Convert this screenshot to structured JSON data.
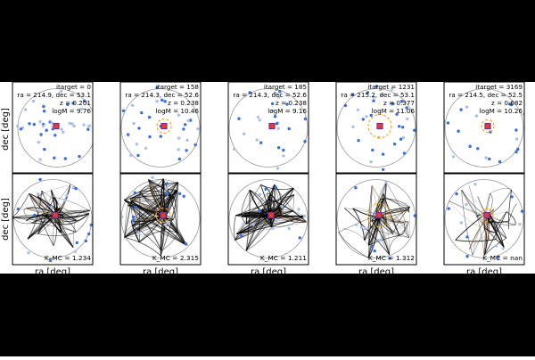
{
  "figure": {
    "top_ylabel": "dec [deg]",
    "bottom_ylabel": "dec [deg]",
    "xlabel": "ra [deg]"
  },
  "chart_data": [
    {
      "type": "scatter",
      "row": "top",
      "info": [
        "itarget = 0",
        "ra = 214.9, dec = 53.1",
        "z = 0.201",
        "logM = 9.76"
      ],
      "has_aperture": false
    },
    {
      "type": "scatter",
      "row": "top",
      "info": [
        "itarget = 158",
        "ra = 214.3, dec = 52.6",
        "z = 0.238",
        "logM = 10.46"
      ],
      "has_aperture": true
    },
    {
      "type": "scatter",
      "row": "top",
      "info": [
        "itarget = 185",
        "ra = 214.3, dec = 52.6",
        "z = 0.238",
        "logM = 9.16"
      ],
      "has_aperture": false
    },
    {
      "type": "scatter",
      "row": "top",
      "info": [
        "itarget = 1231",
        "ra = 215.2, dec = 53.1",
        "z = 0.377",
        "logM = 11.06"
      ],
      "has_aperture": true
    },
    {
      "type": "scatter",
      "row": "top",
      "info": [
        "itarget = 3169",
        "ra = 214.5, dec = 52.5",
        "z = 0.682",
        "logM = 10.26"
      ],
      "has_aperture": true
    },
    {
      "type": "line",
      "row": "bottom",
      "kappa_label": "K_MC = 1.234",
      "has_aperture": false
    },
    {
      "type": "line",
      "row": "bottom",
      "kappa_label": "K_MC = 2.315",
      "has_aperture": true
    },
    {
      "type": "line",
      "row": "bottom",
      "kappa_label": "K_MC = 1.211",
      "has_aperture": false
    },
    {
      "type": "line",
      "row": "bottom",
      "kappa_label": "K_MC = 1.312",
      "has_aperture": true
    },
    {
      "type": "line",
      "row": "bottom",
      "kappa_label": "K_MC = nan",
      "has_aperture": true
    }
  ],
  "colors": {
    "background_band": "#000000",
    "panel_bg": "#ffffff",
    "point": "#3a6fd8",
    "point_faint": "#a9c0ec",
    "circle": "#9a9a9a",
    "aperture": "#f5a623",
    "target_fill": "#e63b2e",
    "target_edge": "#7b2d8e",
    "filament": "#000000"
  }
}
